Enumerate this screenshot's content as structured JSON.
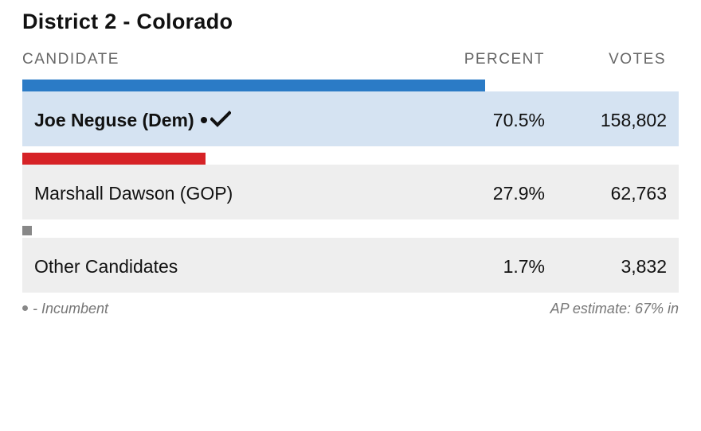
{
  "race": {
    "title": "District 2 - Colorado"
  },
  "table": {
    "headers": {
      "candidate": "CANDIDATE",
      "percent": "PERCENT",
      "votes": "VOTES"
    },
    "candidates": [
      {
        "name": "Joe Neguse (Dem)",
        "percent": "70.5%",
        "percent_value": 70.5,
        "votes": "158,802",
        "party_color": "#2b7bc6",
        "incumbent": true,
        "winner": true,
        "icon": "checkmark-icon"
      },
      {
        "name": "Marshall Dawson (GOP)",
        "percent": "27.9%",
        "percent_value": 27.9,
        "votes": "62,763",
        "party_color": "#d62226",
        "incumbent": false,
        "winner": false
      },
      {
        "name": "Other Candidates",
        "percent": "1.7%",
        "percent_value": 1.7,
        "votes": "3,832",
        "party_color": "#888888",
        "incumbent": false,
        "winner": false
      }
    ]
  },
  "footer": {
    "legend": "- Incumbent",
    "estimate": "AP estimate: 67% in"
  }
}
